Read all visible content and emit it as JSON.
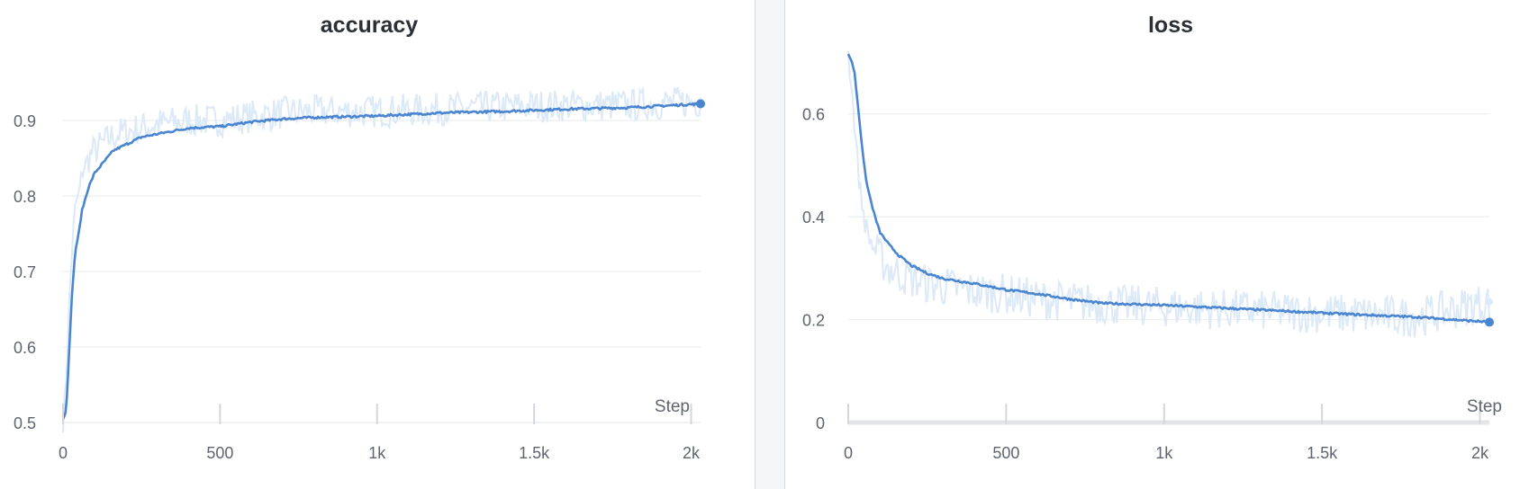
{
  "chart_data": [
    {
      "type": "line",
      "title": "accuracy",
      "xlabel": "Step",
      "ylabel": "",
      "xlim": [
        0,
        2030
      ],
      "ylim": [
        0.5,
        0.95
      ],
      "xticks": [
        0,
        500,
        1000,
        1500,
        2000
      ],
      "xtick_labels": [
        "0",
        "500",
        "1k",
        "1.5k",
        "2k"
      ],
      "yticks": [
        0.5,
        0.6,
        0.7,
        0.8,
        0.9
      ],
      "ytick_labels": [
        "0.5",
        "0.6",
        "0.7",
        "0.8",
        "0.9"
      ],
      "grid": true,
      "colors": {
        "smoothed": "#4a86d0",
        "raw": "#dce9f7"
      },
      "series": [
        {
          "style": "smoothed",
          "x": [
            0,
            10,
            20,
            30,
            40,
            50,
            60,
            80,
            100,
            130,
            160,
            200,
            250,
            300,
            400,
            500,
            600,
            700,
            800,
            1000,
            1200,
            1400,
            1600,
            1800,
            2030
          ],
          "y": [
            0.505,
            0.515,
            0.6,
            0.68,
            0.73,
            0.75,
            0.78,
            0.81,
            0.83,
            0.845,
            0.86,
            0.868,
            0.878,
            0.882,
            0.89,
            0.892,
            0.898,
            0.902,
            0.904,
            0.906,
            0.91,
            0.912,
            0.915,
            0.917,
            0.922
          ]
        },
        {
          "style": "raw",
          "x": [
            0,
            10,
            20,
            30,
            40,
            50,
            60,
            80,
            100,
            130,
            160,
            200,
            250,
            300,
            400,
            500,
            600,
            700,
            800,
            1000,
            1200,
            1400,
            1600,
            1800,
            2030
          ],
          "y": [
            0.5,
            0.56,
            0.66,
            0.74,
            0.79,
            0.8,
            0.83,
            0.85,
            0.86,
            0.87,
            0.88,
            0.885,
            0.89,
            0.895,
            0.9,
            0.9,
            0.905,
            0.91,
            0.912,
            0.912,
            0.915,
            0.918,
            0.92,
            0.92,
            0.925
          ]
        }
      ]
    },
    {
      "type": "line",
      "title": "loss",
      "xlabel": "Step",
      "ylabel": "",
      "xlim": [
        0,
        2030
      ],
      "ylim": [
        0,
        0.72
      ],
      "xticks": [
        0,
        500,
        1000,
        1500,
        2000
      ],
      "xtick_labels": [
        "0",
        "500",
        "1k",
        "1.5k",
        "2k"
      ],
      "yticks": [
        0,
        0.2,
        0.4,
        0.6
      ],
      "ytick_labels": [
        "0",
        "0.2",
        "0.4",
        "0.6"
      ],
      "grid": true,
      "colors": {
        "smoothed": "#4a86d0",
        "raw": "#dce9f7"
      },
      "series": [
        {
          "style": "smoothed",
          "x": [
            0,
            10,
            20,
            30,
            40,
            50,
            60,
            80,
            100,
            130,
            160,
            200,
            250,
            300,
            400,
            500,
            600,
            700,
            800,
            1000,
            1200,
            1400,
            1600,
            1800,
            2030
          ],
          "y": [
            0.715,
            0.705,
            0.68,
            0.62,
            0.56,
            0.5,
            0.46,
            0.41,
            0.37,
            0.345,
            0.325,
            0.305,
            0.29,
            0.28,
            0.27,
            0.258,
            0.25,
            0.24,
            0.232,
            0.228,
            0.222,
            0.216,
            0.21,
            0.205,
            0.195
          ]
        },
        {
          "style": "raw",
          "x": [
            0,
            10,
            20,
            30,
            40,
            50,
            60,
            80,
            100,
            130,
            160,
            200,
            250,
            300,
            400,
            500,
            600,
            700,
            800,
            1000,
            1200,
            1400,
            1600,
            1800,
            2030
          ],
          "y": [
            0.715,
            0.66,
            0.58,
            0.5,
            0.44,
            0.4,
            0.37,
            0.34,
            0.32,
            0.3,
            0.29,
            0.28,
            0.27,
            0.265,
            0.255,
            0.25,
            0.24,
            0.235,
            0.23,
            0.225,
            0.22,
            0.215,
            0.21,
            0.205,
            0.235
          ]
        }
      ]
    }
  ]
}
